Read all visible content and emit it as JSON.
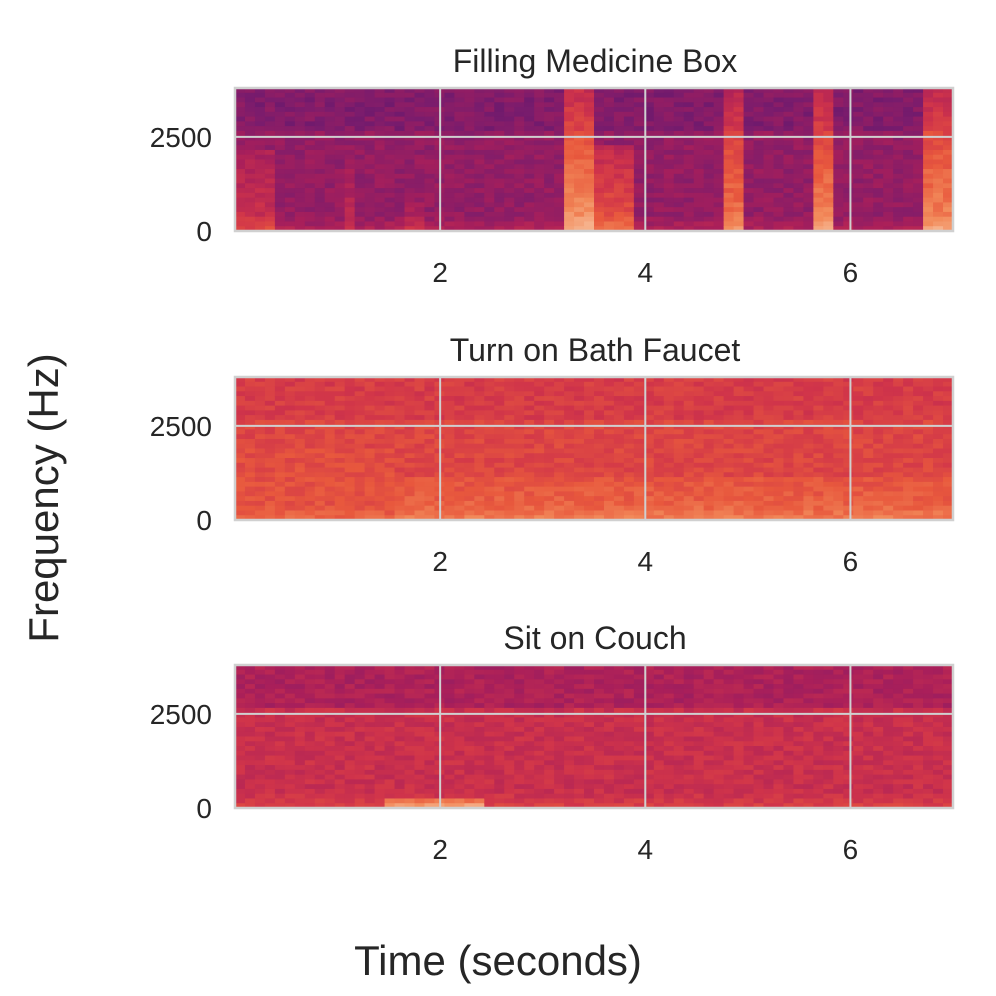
{
  "chart_data": [
    {
      "type": "heatmap",
      "title": "Filling Medicine Box",
      "xlim": [
        0,
        7
      ],
      "ylim": [
        0,
        3800
      ],
      "xticks": [
        2,
        4,
        6
      ],
      "yticks": [
        0,
        2500
      ],
      "xtick_labels": [
        "2",
        "4",
        "6"
      ],
      "ytick_labels": [
        "0",
        "2500"
      ],
      "base_intensity": 0.22,
      "cutoff_hz": 2600,
      "high_band_drop": 0.05,
      "low_band_boost": 0.1,
      "noise": 0.05,
      "events": [
        {
          "t0": 0.0,
          "t1": 0.35,
          "fmax": 2100,
          "strength": 0.2
        },
        {
          "t0": 1.1,
          "t1": 1.2,
          "fmax": 1600,
          "strength": 0.15
        },
        {
          "t0": 1.7,
          "t1": 1.8,
          "fmax": 800,
          "strength": 0.12
        },
        {
          "t0": 3.2,
          "t1": 3.5,
          "fmax": 3800,
          "strength": 0.55
        },
        {
          "t0": 3.5,
          "t1": 3.9,
          "fmax": 2300,
          "strength": 0.35
        },
        {
          "t0": 4.8,
          "t1": 5.0,
          "fmax": 3800,
          "strength": 0.45
        },
        {
          "t0": 5.6,
          "t1": 5.85,
          "fmax": 3800,
          "strength": 0.5
        },
        {
          "t0": 6.7,
          "t1": 7.0,
          "fmax": 3800,
          "strength": 0.5
        }
      ]
    },
    {
      "type": "heatmap",
      "title": "Turn on Bath Faucet",
      "xlim": [
        0,
        7
      ],
      "ylim": [
        0,
        3800
      ],
      "xticks": [
        2,
        4,
        6
      ],
      "yticks": [
        0,
        2500
      ],
      "xtick_labels": [
        "2",
        "4",
        "6"
      ],
      "ytick_labels": [
        "0",
        "2500"
      ],
      "base_intensity": 0.5,
      "cutoff_hz": 2600,
      "high_band_drop": 0.04,
      "low_band_boost": 0.06,
      "noise": 0.05,
      "events": [
        {
          "t0": 1.6,
          "t1": 7.0,
          "fmax": 1100,
          "strength": 0.12
        },
        {
          "t0": 0.0,
          "t1": 1.6,
          "fmax": 1900,
          "strength": 0.05
        }
      ]
    },
    {
      "type": "heatmap",
      "title": "Sit on Couch",
      "xlim": [
        0,
        7
      ],
      "ylim": [
        0,
        3800
      ],
      "xticks": [
        2,
        4,
        6
      ],
      "yticks": [
        0,
        2500
      ],
      "xtick_labels": [
        "2",
        "4",
        "6"
      ],
      "ytick_labels": [
        "0",
        "2500"
      ],
      "base_intensity": 0.4,
      "cutoff_hz": 2600,
      "high_band_drop": 0.1,
      "low_band_boost": 0.08,
      "noise": 0.05,
      "events": [
        {
          "t0": 1.5,
          "t1": 2.4,
          "fmax": 300,
          "strength": 0.35
        }
      ]
    }
  ],
  "figure": {
    "xlabel": "Time (seconds)",
    "ylabel": "Frequency (Hz)"
  },
  "colors": {
    "background": "#ffffff",
    "grid": "#d0d0d0",
    "text": "#262626",
    "colormap": [
      "#3b0f70",
      "#7a1c6d",
      "#a91f5a",
      "#d0344a",
      "#e8583d",
      "#f28a5a",
      "#f6b48f",
      "#fae3c6"
    ]
  }
}
